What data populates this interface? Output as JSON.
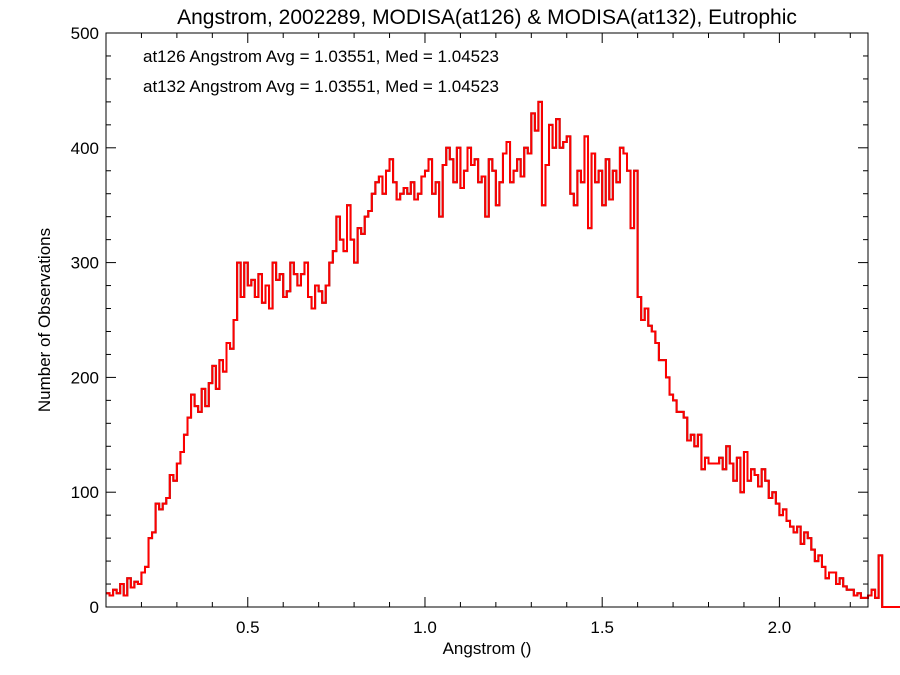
{
  "chart_data": {
    "type": "histogram",
    "title": "Angstrom, 2002289, MODISA(at126) & MODISA(at132), Eutrophic",
    "xlabel": "Angstrom ()",
    "ylabel": "Number of Observations",
    "xlim": [
      0.1,
      2.25
    ],
    "ylim": [
      0,
      500
    ],
    "xticks": [
      0.5,
      1.0,
      1.5,
      2.0
    ],
    "xtick_labels": [
      "0.5",
      "1.0",
      "1.5",
      "2.0"
    ],
    "yticks": [
      0,
      100,
      200,
      300,
      400,
      500
    ],
    "ytick_labels": [
      "0",
      "100",
      "200",
      "300",
      "400",
      "500"
    ],
    "bin_width": 0.01,
    "x_start": 0.1,
    "annotations": [
      {
        "text": "at126 Angstrom Avg = 1.03551, Med = 1.04523",
        "color": "#000000"
      },
      {
        "text": "at132 Angstrom Avg = 1.03551, Med = 1.04523",
        "color": "#ff0000"
      }
    ],
    "series": [
      {
        "name": "at126",
        "color": "#000000",
        "values": [
          12,
          10,
          15,
          12,
          20,
          10,
          25,
          17,
          22,
          20,
          30,
          35,
          60,
          65,
          90,
          85,
          90,
          95,
          115,
          110,
          125,
          135,
          150,
          165,
          185,
          175,
          170,
          190,
          175,
          195,
          210,
          190,
          215,
          205,
          230,
          225,
          250,
          300,
          270,
          300,
          280,
          285,
          270,
          290,
          265,
          280,
          260,
          300,
          285,
          290,
          270,
          275,
          300,
          290,
          280,
          290,
          300,
          270,
          260,
          280,
          275,
          265,
          280,
          300,
          310,
          340,
          320,
          310,
          350,
          320,
          300,
          330,
          325,
          340,
          345,
          360,
          370,
          375,
          360,
          380,
          390,
          370,
          355,
          360,
          365,
          360,
          370,
          355,
          360,
          375,
          380,
          390,
          360,
          370,
          340,
          385,
          400,
          390,
          370,
          400,
          365,
          380,
          400,
          385,
          390,
          370,
          375,
          340,
          390,
          380,
          350,
          370,
          395,
          405,
          370,
          380,
          390,
          375,
          400,
          395,
          430,
          415,
          440,
          350,
          385,
          420,
          400,
          425,
          400,
          405,
          410,
          360,
          350,
          380,
          370,
          410,
          330,
          395,
          370,
          380,
          350,
          390,
          355,
          380,
          370,
          400,
          395,
          380,
          330,
          380,
          270,
          250,
          260,
          245,
          240,
          230,
          215,
          215,
          200,
          185,
          180,
          170,
          170,
          165,
          145,
          150,
          140,
          150,
          120,
          130,
          125,
          125,
          125,
          130,
          120,
          140,
          125,
          110,
          130,
          100,
          135,
          110,
          120,
          115,
          105,
          120,
          110,
          95,
          100,
          90,
          80,
          85,
          75,
          70,
          65,
          70,
          55,
          65,
          60,
          50,
          40,
          45,
          35,
          25,
          30,
          30,
          20,
          25,
          18,
          15,
          15,
          10,
          12,
          8,
          8,
          10,
          15,
          8,
          45,
          0,
          0,
          0,
          0,
          0,
          0,
          0,
          0,
          0,
          0,
          0
        ]
      },
      {
        "name": "at132",
        "color": "#ff0000",
        "values": [
          12,
          10,
          15,
          12,
          20,
          10,
          25,
          17,
          22,
          20,
          30,
          35,
          60,
          65,
          90,
          85,
          90,
          95,
          115,
          110,
          125,
          135,
          150,
          165,
          185,
          175,
          170,
          190,
          175,
          195,
          210,
          190,
          215,
          205,
          230,
          225,
          250,
          300,
          270,
          300,
          280,
          285,
          270,
          290,
          265,
          280,
          260,
          300,
          285,
          290,
          270,
          275,
          300,
          290,
          280,
          290,
          300,
          270,
          260,
          280,
          275,
          265,
          280,
          300,
          310,
          340,
          320,
          310,
          350,
          320,
          300,
          330,
          325,
          340,
          345,
          360,
          370,
          375,
          360,
          380,
          390,
          370,
          355,
          360,
          365,
          360,
          370,
          355,
          360,
          375,
          380,
          390,
          360,
          370,
          340,
          385,
          400,
          390,
          370,
          400,
          365,
          380,
          400,
          385,
          390,
          370,
          375,
          340,
          390,
          380,
          350,
          370,
          395,
          405,
          370,
          380,
          390,
          375,
          400,
          395,
          430,
          415,
          440,
          350,
          385,
          420,
          400,
          425,
          400,
          405,
          410,
          360,
          350,
          380,
          370,
          410,
          330,
          395,
          370,
          380,
          350,
          390,
          355,
          380,
          370,
          400,
          395,
          380,
          330,
          380,
          270,
          250,
          260,
          245,
          240,
          230,
          215,
          215,
          200,
          185,
          180,
          170,
          170,
          165,
          145,
          150,
          140,
          150,
          120,
          130,
          125,
          125,
          125,
          130,
          120,
          140,
          125,
          110,
          130,
          100,
          135,
          110,
          120,
          115,
          105,
          120,
          110,
          95,
          100,
          90,
          80,
          85,
          75,
          70,
          65,
          70,
          55,
          65,
          60,
          50,
          40,
          45,
          35,
          25,
          30,
          30,
          20,
          25,
          18,
          15,
          15,
          10,
          12,
          8,
          8,
          10,
          15,
          8,
          45,
          0,
          0,
          0,
          0,
          0,
          0,
          0,
          0,
          0,
          0,
          0
        ]
      }
    ]
  }
}
